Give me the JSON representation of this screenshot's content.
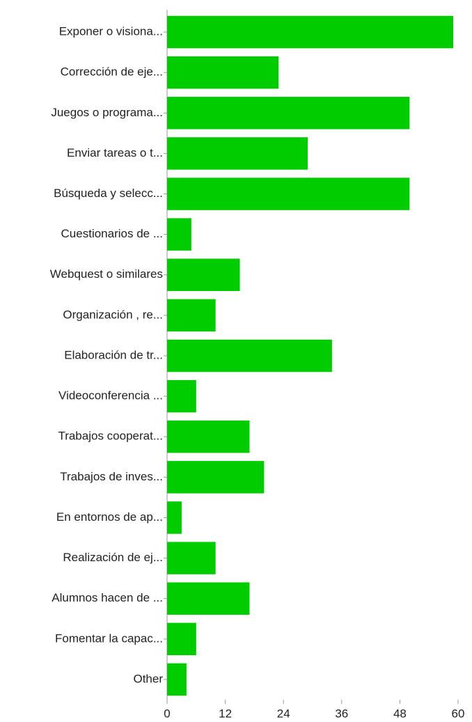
{
  "chart_data": {
    "type": "barh",
    "categories": [
      "Exponer o visiona...",
      "Corrección de eje...",
      "Juegos o programa...",
      "Enviar tareas o t...",
      "Búsqueda y selecc...",
      "Cuestionarios de ...",
      "Webquest o similares",
      "Organización , re...",
      "Elaboración de tr...",
      "Videoconferencia ...",
      "Trabajos cooperat...",
      "Trabajos de inves...",
      "En entornos de ap...",
      "Realización de ej...",
      "Alumnos hacen de ...",
      "Fomentar la capac...",
      "Other"
    ],
    "values": [
      59,
      23,
      50,
      29,
      50,
      5,
      15,
      10,
      34,
      6,
      17,
      20,
      3,
      10,
      17,
      6,
      4
    ],
    "color": "#00cc00",
    "xlim": [
      0,
      60
    ],
    "xticks": [
      0,
      12,
      24,
      36,
      48,
      60
    ],
    "grid": false
  }
}
